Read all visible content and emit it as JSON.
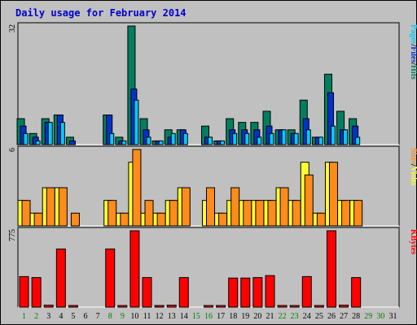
{
  "title": "Daily usage for February 2014",
  "chart_data": [
    {
      "type": "bar",
      "panel": "hits-files-pages",
      "ymax_label": "32",
      "ylim": [
        0,
        32
      ],
      "categories": [
        "1",
        "2",
        "3",
        "4",
        "5",
        "6",
        "7",
        "8",
        "9",
        "10",
        "11",
        "12",
        "13",
        "14",
        "15",
        "16",
        "17",
        "18",
        "19",
        "20",
        "21",
        "22",
        "23",
        "24",
        "25",
        "26",
        "27",
        "28",
        "29",
        "30",
        "31"
      ],
      "series": [
        {
          "name": "Hits",
          "color": "#007f5f",
          "values": [
            7,
            3,
            7,
            8,
            2,
            0,
            0,
            8,
            2,
            32,
            7,
            1,
            4,
            4,
            0,
            5,
            1,
            7,
            6,
            6,
            9,
            4,
            4,
            12,
            2,
            19,
            9,
            7,
            0,
            0,
            0
          ]
        },
        {
          "name": "Files",
          "color": "#0033cc",
          "values": [
            5,
            2,
            6,
            8,
            1,
            0,
            0,
            8,
            1,
            15,
            4,
            1,
            2,
            4,
            0,
            2,
            1,
            4,
            4,
            4,
            5,
            4,
            3,
            7,
            2,
            14,
            4,
            5,
            0,
            0,
            0
          ]
        },
        {
          "name": "Pages",
          "color": "#00ccff",
          "values": [
            3,
            1,
            6,
            6,
            0,
            0,
            0,
            3,
            1,
            12,
            2,
            1,
            3,
            3,
            0,
            2,
            1,
            3,
            3,
            2,
            3,
            4,
            3,
            4,
            2,
            5,
            4,
            2,
            0,
            0,
            0
          ]
        }
      ],
      "legend": [
        "Pages",
        "/",
        "Files",
        "/",
        "Hits"
      ]
    },
    {
      "type": "bar",
      "panel": "visits-sites",
      "ymax_label": "6",
      "ylim": [
        0,
        6
      ],
      "categories": [
        "1",
        "2",
        "3",
        "4",
        "5",
        "6",
        "7",
        "8",
        "9",
        "10",
        "11",
        "12",
        "13",
        "14",
        "15",
        "16",
        "17",
        "18",
        "19",
        "20",
        "21",
        "22",
        "23",
        "24",
        "25",
        "26",
        "27",
        "28",
        "29",
        "30",
        "31"
      ],
      "series": [
        {
          "name": "Visits",
          "color": "#ffff33",
          "values": [
            2,
            1,
            3,
            3,
            0,
            0,
            0,
            2,
            1,
            5,
            1,
            1,
            2,
            3,
            0,
            2,
            1,
            2,
            2,
            2,
            2,
            3,
            2,
            5,
            1,
            5,
            2,
            2,
            0,
            0,
            0
          ]
        },
        {
          "name": "Sites",
          "color": "#ff8c1a",
          "values": [
            2,
            1,
            3,
            3,
            1,
            0,
            0,
            2,
            1,
            6,
            2,
            1,
            2,
            3,
            0,
            3,
            1,
            3,
            2,
            2,
            2,
            3,
            2,
            4,
            1,
            5,
            2,
            2,
            0,
            0,
            0
          ]
        }
      ],
      "legend": [
        "Sites",
        "/",
        "Visits"
      ]
    },
    {
      "type": "bar",
      "panel": "kbytes",
      "ymax_label": "775",
      "ylim": [
        0,
        775
      ],
      "categories": [
        "1",
        "2",
        "3",
        "4",
        "5",
        "6",
        "7",
        "8",
        "9",
        "10",
        "11",
        "12",
        "13",
        "14",
        "15",
        "16",
        "17",
        "18",
        "19",
        "20",
        "21",
        "22",
        "23",
        "24",
        "25",
        "26",
        "27",
        "28",
        "29",
        "30",
        "31"
      ],
      "series": [
        {
          "name": "KBytes",
          "color": "#ff0000",
          "values": [
            310,
            300,
            20,
            590,
            10,
            0,
            0,
            590,
            10,
            775,
            300,
            10,
            20,
            300,
            0,
            15,
            10,
            295,
            295,
            300,
            320,
            10,
            10,
            310,
            10,
            775,
            20,
            300,
            0,
            0,
            0
          ]
        }
      ],
      "legend": [
        "KBytes"
      ]
    }
  ],
  "weekend_days": [
    "1",
    "2",
    "8",
    "9",
    "15",
    "16",
    "22",
    "23",
    "29",
    "30"
  ],
  "colors": {
    "weekday_label": "#000000",
    "weekend_label": "#007f00",
    "background": "#c0c0c0",
    "bar_outline": "#000000"
  }
}
